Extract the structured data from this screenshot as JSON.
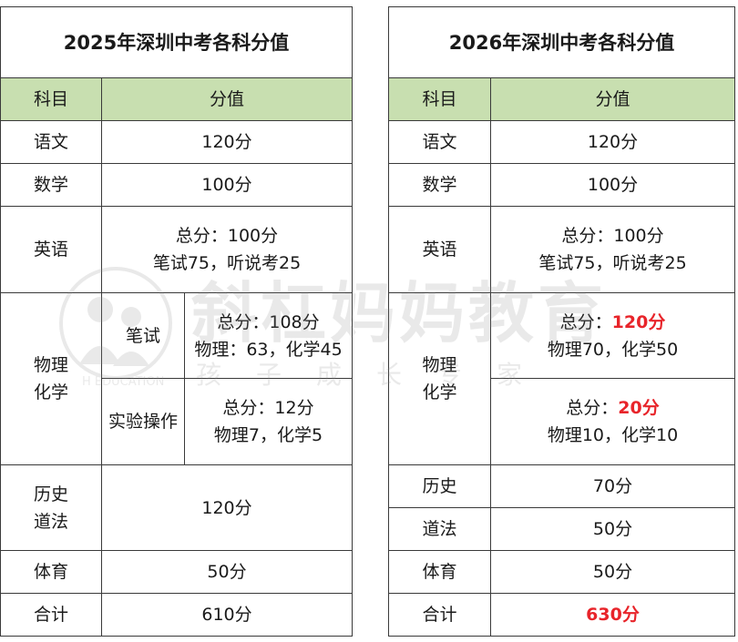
{
  "left": {
    "title": "2025年深圳中考各科分值",
    "col_subject": "科目",
    "col_score": "分值",
    "chinese": {
      "name": "语文",
      "score": "120分"
    },
    "math": {
      "name": "数学",
      "score": "100分"
    },
    "english": {
      "name": "英语",
      "line1": "总分：100分",
      "line2": "笔试75，听说考25"
    },
    "physchem": {
      "name_line1": "物理",
      "name_line2": "化学",
      "written": {
        "label": "笔试",
        "line1": "总分：108分",
        "line2": "物理：63，化学45"
      },
      "lab": {
        "label": "实验操作",
        "line1": "总分：12分",
        "line2": "物理7，化学5"
      }
    },
    "histlaw": {
      "name_line1": "历史",
      "name_line2": "道法",
      "score": "120分"
    },
    "pe": {
      "name": "体育",
      "score": "50分"
    },
    "total": {
      "name": "合计",
      "score": "610分"
    }
  },
  "right": {
    "title": "2026年深圳中考各科分值",
    "col_subject": "科目",
    "col_score": "分值",
    "chinese": {
      "name": "语文",
      "score": "120分"
    },
    "math": {
      "name": "数学",
      "score": "100分"
    },
    "english": {
      "name": "英语",
      "line1": "总分：100分",
      "line2": "笔试75，听说考25"
    },
    "physchem": {
      "name_line1": "物理",
      "name_line2": "化学",
      "written": {
        "prefix": "总分：",
        "value": "120分",
        "line2": "物理70，化学50"
      },
      "lab": {
        "prefix": "总分：",
        "value": "20分",
        "line2": "物理10，化学10"
      }
    },
    "history": {
      "name": "历史",
      "score": "70分"
    },
    "law": {
      "name": "道法",
      "score": "50分"
    },
    "pe": {
      "name": "体育",
      "score": "50分"
    },
    "total": {
      "name": "合计",
      "score": "630分"
    }
  },
  "watermark": {
    "title": "斜杠妈妈教育",
    "subtitle": "孩子成长专家",
    "english": "H EDUCATION"
  },
  "colors": {
    "header_bg": "#c8dfb0",
    "highlight": "#e8242a"
  }
}
